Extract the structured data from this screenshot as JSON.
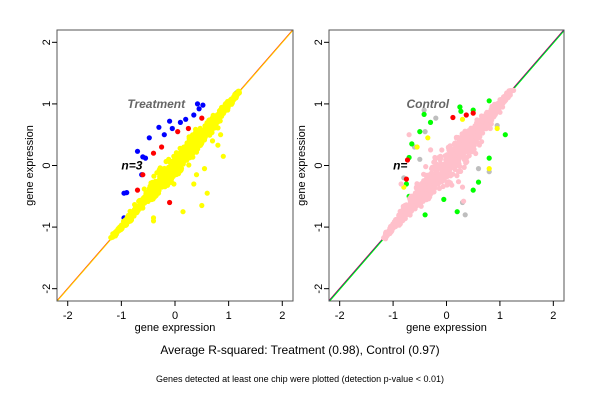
{
  "chart_data": [
    {
      "type": "scatter",
      "title": "Treatment",
      "annotation": "n=3",
      "xlabel": "gene expression",
      "ylabel": "gene expression",
      "xlim": [
        -2.2,
        2.2
      ],
      "ylim": [
        -2.2,
        2.2
      ],
      "xticks": [
        "-2",
        "-1",
        "0",
        "1",
        "2"
      ],
      "yticks": [
        "-2",
        "-1",
        "0",
        "1",
        "2"
      ],
      "tick_values": [
        -2,
        -1,
        0,
        1,
        2
      ],
      "diagonal_colors": [
        "#ff0000",
        "#ffd700"
      ],
      "cloud": {
        "range": [
          -1.15,
          1.2
        ],
        "spread": 0.12,
        "color": "#ffff00",
        "count": 900
      },
      "series": [
        {
          "name": "blue",
          "color": "#0000ff",
          "points": [
            [
              -0.48,
              0.45
            ],
            [
              -0.3,
              0.62
            ],
            [
              -0.05,
              0.6
            ],
            [
              0.1,
              0.7
            ],
            [
              0.2,
              0.75
            ],
            [
              0.35,
              0.82
            ],
            [
              0.45,
              0.92
            ],
            [
              0.52,
              0.98
            ],
            [
              0.42,
              1.0
            ],
            [
              -0.1,
              0.72
            ],
            [
              -0.2,
              0.5
            ],
            [
              -0.7,
              0.23
            ],
            [
              -0.6,
              0.14
            ],
            [
              -0.55,
              0.12
            ],
            [
              -0.95,
              -0.45
            ],
            [
              -0.9,
              -0.44
            ],
            [
              -0.95,
              -0.85
            ],
            [
              1.15,
              1.18
            ],
            [
              -1.1,
              -1.12
            ],
            [
              -0.62,
              -0.15
            ]
          ]
        },
        {
          "name": "red",
          "color": "#ff0000",
          "points": [
            [
              -0.7,
              -0.4
            ],
            [
              -0.4,
              0.2
            ],
            [
              -0.25,
              0.3
            ],
            [
              0.25,
              0.6
            ],
            [
              0.5,
              0.77
            ],
            [
              -0.1,
              -0.6
            ],
            [
              -0.6,
              -0.15
            ],
            [
              0.05,
              0.55
            ]
          ]
        },
        {
          "name": "yellow",
          "color": "#ffff00",
          "points": [
            [
              0.7,
              0.4
            ],
            [
              0.8,
              0.33
            ],
            [
              0.9,
              0.15
            ],
            [
              0.6,
              -0.45
            ],
            [
              0.5,
              -0.65
            ],
            [
              0.15,
              -0.75
            ],
            [
              0.35,
              -0.3
            ],
            [
              0.4,
              -0.15
            ],
            [
              0.55,
              -0.05
            ],
            [
              -0.4,
              -0.9
            ],
            [
              -0.4,
              -0.85
            ],
            [
              0.85,
              0.5
            ]
          ]
        }
      ]
    },
    {
      "type": "scatter",
      "title": "Control",
      "annotation": "n=",
      "xlabel": "gene expression",
      "ylabel": "gene expression",
      "xlim": [
        -2.2,
        2.2
      ],
      "ylim": [
        -2.2,
        2.2
      ],
      "xticks": [
        "-2",
        "-1",
        "0",
        "1",
        "2"
      ],
      "yticks": [
        "-2",
        "-1",
        "0",
        "1",
        "2"
      ],
      "tick_values": [
        -2,
        -1,
        0,
        1,
        2
      ],
      "diagonal_colors": [
        "#ff0000",
        "#0000ff",
        "#00ff00"
      ],
      "cloud": {
        "range": [
          -1.15,
          1.2
        ],
        "spread": 0.17,
        "color": "#ffc0cb",
        "count": 1100
      },
      "series": [
        {
          "name": "gray",
          "color": "#bebebe",
          "points": [
            [
              -0.42,
              0.9
            ],
            [
              -0.2,
              0.77
            ],
            [
              -0.4,
              0.55
            ],
            [
              -0.6,
              0.3
            ],
            [
              0.3,
              -0.6
            ],
            [
              0.35,
              -0.8
            ],
            [
              0.8,
              -0.1
            ],
            [
              0.6,
              -0.05
            ],
            [
              -0.5,
              0.1
            ],
            [
              0.25,
              0.95
            ],
            [
              0.95,
              0.65
            ],
            [
              -0.8,
              -0.2
            ]
          ]
        },
        {
          "name": "green",
          "color": "#00ff00",
          "points": [
            [
              -0.42,
              0.83
            ],
            [
              -0.3,
              0.7
            ],
            [
              0.27,
              0.88
            ],
            [
              0.25,
              0.95
            ],
            [
              0.8,
              1.05
            ],
            [
              0.5,
              0.9
            ],
            [
              1.1,
              0.5
            ],
            [
              -0.65,
              0.35
            ],
            [
              -0.5,
              0.55
            ],
            [
              -0.7,
              0.13
            ],
            [
              0.8,
              0.12
            ],
            [
              0.5,
              -0.4
            ],
            [
              0.2,
              -0.75
            ],
            [
              0.6,
              -0.27
            ],
            [
              -0.75,
              -0.3
            ],
            [
              -0.7,
              -0.5
            ],
            [
              -0.05,
              -0.55
            ],
            [
              -0.4,
              -0.8
            ]
          ]
        },
        {
          "name": "red",
          "color": "#ff0000",
          "points": [
            [
              0.12,
              0.78
            ],
            [
              0.37,
              0.82
            ],
            [
              -0.73,
              0.09
            ],
            [
              -0.75,
              -0.22
            ],
            [
              0.5,
              0.85
            ]
          ]
        },
        {
          "name": "yellow",
          "color": "#ffff00",
          "points": [
            [
              0.3,
              0.75
            ],
            [
              -0.35,
              0.45
            ],
            [
              0.8,
              -0.05
            ],
            [
              -0.8,
              -0.35
            ],
            [
              0.95,
              0.6
            ],
            [
              -0.55,
              0.3
            ]
          ]
        },
        {
          "name": "pink",
          "color": "#ffc0cb",
          "points": [
            [
              -0.7,
              0.5
            ],
            [
              0.32,
              -0.58
            ],
            [
              0.3,
              -0.35
            ],
            [
              -0.85,
              -0.3
            ],
            [
              1.05,
              0.95
            ]
          ]
        }
      ]
    }
  ],
  "captions": {
    "summary": "Average R-squared: Treatment (0.98), Control (0.97)",
    "footnote": "Genes detected at least one chip were plotted (detection p-value < 0.01)"
  }
}
